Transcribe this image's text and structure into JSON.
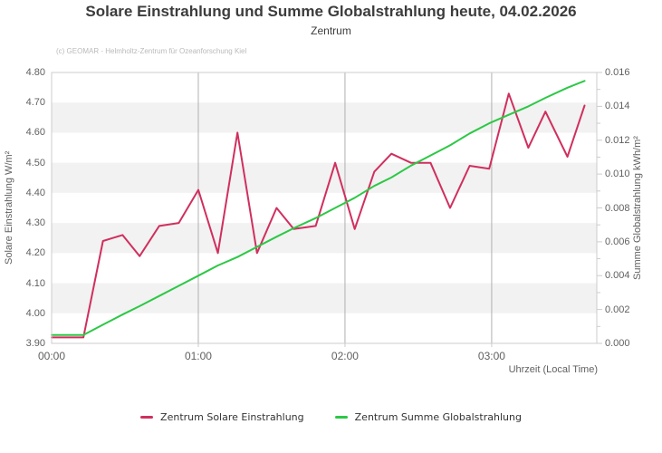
{
  "title": "Solare Einstrahlung und Summe Globalstrahlung heute, 04.02.2026",
  "subtitle": "Zentrum",
  "copyright": "(c) GEOMAR - Helmholtz-Zentrum für Ozeanforschung Kiel",
  "x_axis": {
    "title": "Uhrzeit (Local Time)",
    "tick_labels": [
      "00:00",
      "01:00",
      "02:00",
      "03:00"
    ],
    "tick_minutes": [
      0,
      60,
      120,
      180
    ]
  },
  "y_axis_left": {
    "title": "Solare Einstrahlung W/m²",
    "tick_labels": [
      "4.80",
      "4.70",
      "4.60",
      "4.50",
      "4.40",
      "4.30",
      "4.20",
      "4.10",
      "4.00",
      "3.90"
    ]
  },
  "y_axis_right": {
    "title": "Summe Globalstrahlung kWh/m²",
    "tick_labels": [
      "0.016",
      "0.014",
      "0.012",
      "0.010",
      "0.008",
      "0.006",
      "0.004",
      "0.002",
      "0.000"
    ]
  },
  "legend": {
    "items": [
      {
        "label": "Zentrum Solare Einstrahlung",
        "color": "#d02f5e"
      },
      {
        "label": "Zentrum Summe Globalstrahlung",
        "color": "#2cc845"
      }
    ]
  },
  "colors": {
    "solare": "#d02f5e",
    "summe": "#2cc845",
    "band": "#f2f2f2",
    "gridline": "#b0b0b0",
    "plot_border": "#cccccc",
    "tick": "#cccccc",
    "axis_text": "#606060"
  },
  "chart_data": {
    "type": "line",
    "title": "Solare Einstrahlung und Summe Globalstrahlung heute, 04.02.2026",
    "subtitle": "Zentrum",
    "xlabel": "Uhrzeit (Local Time)",
    "x_times": [
      "00:00",
      "00:13",
      "00:21",
      "00:29",
      "00:36",
      "00:44",
      "00:52",
      "01:00",
      "01:08",
      "01:16",
      "01:24",
      "01:32",
      "01:39",
      "01:48",
      "01:56",
      "02:04",
      "02:12",
      "02:19",
      "02:27",
      "02:35",
      "02:43",
      "02:51",
      "03:00",
      "03:07",
      "03:15",
      "03:22",
      "03:31",
      "03:38"
    ],
    "x_minutes": [
      0,
      13,
      21,
      29,
      36,
      44,
      52,
      60,
      68,
      76,
      84,
      92,
      99,
      108,
      116,
      124,
      132,
      139,
      147,
      155,
      163,
      171,
      179,
      187,
      195,
      202,
      211,
      218
    ],
    "x_range_minutes": [
      0,
      223
    ],
    "series": [
      {
        "name": "Zentrum Solare Einstrahlung",
        "yaxis": "left",
        "unit": "W/m²",
        "color": "#d02f5e",
        "values": [
          3.92,
          3.92,
          4.24,
          4.26,
          4.19,
          4.29,
          4.3,
          4.41,
          4.2,
          4.6,
          4.2,
          4.35,
          4.28,
          4.29,
          4.5,
          4.28,
          4.47,
          4.53,
          4.5,
          4.5,
          4.35,
          4.49,
          4.48,
          4.73,
          4.55,
          4.67,
          4.52,
          4.69
        ]
      },
      {
        "name": "Zentrum Summe Globalstrahlung",
        "yaxis": "right",
        "unit": "kWh/m²",
        "color": "#2cc845",
        "values": [
          0.0005,
          0.0005,
          0.0011,
          0.0017,
          0.0022,
          0.0028,
          0.0034,
          0.004,
          0.0046,
          0.0051,
          0.0057,
          0.0063,
          0.0068,
          0.0074,
          0.008,
          0.0086,
          0.0093,
          0.0098,
          0.0105,
          0.0111,
          0.0117,
          0.0124,
          0.013,
          0.0135,
          0.014,
          0.0145,
          0.0151,
          0.0155
        ]
      }
    ],
    "y_left": {
      "label": "Solare Einstrahlung W/m²",
      "range": [
        3.9,
        4.8
      ],
      "tick_step": 0.1
    },
    "y_right": {
      "label": "Summe Globalstrahlung kWh/m²",
      "range": [
        0.0,
        0.016
      ],
      "tick_step": 0.002
    },
    "grid": "alternating horizontal bands aligned to left-axis ticks; vertical gridlines at each hour",
    "legend_position": "bottom-center"
  }
}
